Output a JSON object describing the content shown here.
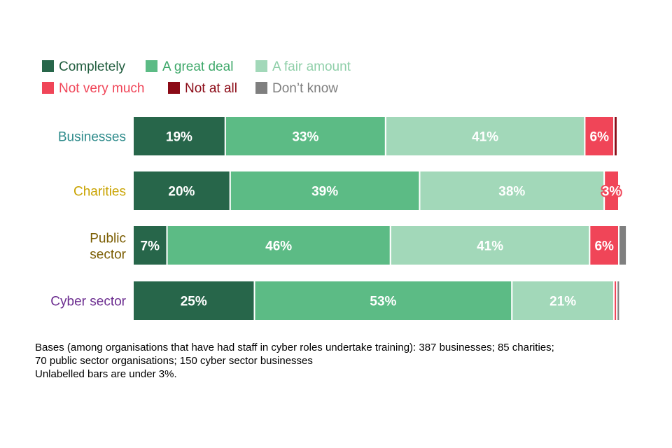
{
  "chart_data": {
    "type": "bar",
    "orientation": "horizontal",
    "stacked": true,
    "categories": [
      "Businesses",
      "Charities",
      "Public sector",
      "Cyber sector"
    ],
    "category_lines": [
      [
        "Businesses"
      ],
      [
        "Charities"
      ],
      [
        "Public",
        "sector"
      ],
      [
        "Cyber sector"
      ]
    ],
    "category_colors": [
      "#2e8b8b",
      "#c9a300",
      "#7a5c00",
      "#6b2c8f"
    ],
    "series": [
      {
        "name": "Completely",
        "color": "#27664a",
        "values": [
          19,
          20,
          7,
          25
        ],
        "labels": [
          "19%",
          "20%",
          "7%",
          "25%"
        ]
      },
      {
        "name": "A great deal",
        "color": "#5cbb85",
        "values": [
          33,
          39,
          46,
          53
        ],
        "labels": [
          "33%",
          "39%",
          "46%",
          "53%"
        ]
      },
      {
        "name": "A fair amount",
        "color": "#a2d8b9",
        "values": [
          41,
          38,
          41,
          21
        ],
        "labels": [
          "41%",
          "38%",
          "41%",
          "21%"
        ]
      },
      {
        "name": "Not very much",
        "color": "#f04558",
        "values": [
          6,
          3,
          6,
          0.6
        ],
        "labels": [
          "6%",
          "3%",
          "6%",
          ""
        ]
      },
      {
        "name": "Not at all",
        "color": "#8b0a16",
        "values": [
          0.7,
          0,
          0,
          0
        ],
        "labels": [
          "",
          "",
          "",
          ""
        ]
      },
      {
        "name": "Don't know",
        "color": "#7f7f7f",
        "values": [
          0,
          0,
          1.6,
          0.6
        ],
        "labels": [
          "",
          "",
          "",
          ""
        ]
      }
    ],
    "legend": {
      "placement": "top-left",
      "labels": [
        "Completely",
        "A great deal",
        "A fair amount",
        "Not very much",
        "Not at all",
        "Don’t know"
      ],
      "text_colors": [
        "#1f5c3d",
        "#3ea86a",
        "#8fcfa9",
        "#f04558",
        "#8b0a16",
        "#7f7f7f"
      ]
    },
    "xlim": [
      0,
      100
    ],
    "title": "",
    "xlabel": "",
    "ylabel": ""
  },
  "notes": {
    "bases_line1": "Bases (among organisations that have had staff in cyber roles undertake training): 387 businesses; 85 charities;",
    "bases_line2": "70 public sector organisations; 150 cyber sector businesses",
    "unlabelled": "Unlabelled bars are under 3%."
  }
}
